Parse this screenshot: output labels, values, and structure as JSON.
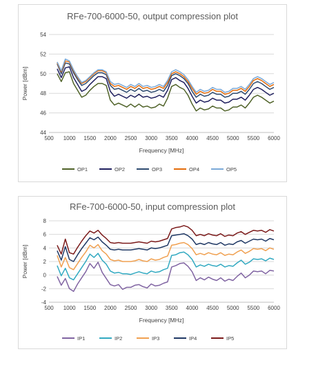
{
  "chart_data": [
    {
      "type": "line",
      "title": "RFe-700-6000-50, output compression plot",
      "xlabel": "Frequency [MHz]",
      "ylabel": "Power [dBm]",
      "xlim": [
        500,
        6000
      ],
      "ylim": [
        44,
        54
      ],
      "xticks": [
        "500",
        "1000",
        "1500",
        "2000",
        "2500",
        "3000",
        "3500",
        "4000",
        "4500",
        "5000",
        "5500",
        "6000"
      ],
      "yticks": [
        "44",
        "46",
        "48",
        "50",
        "52",
        "54"
      ],
      "grid": "horizontal",
      "legend": "bottom",
      "x": [
        700,
        800,
        900,
        1000,
        1100,
        1200,
        1300,
        1400,
        1500,
        1600,
        1700,
        1800,
        1900,
        2000,
        2100,
        2200,
        2300,
        2400,
        2500,
        2600,
        2700,
        2800,
        2900,
        3000,
        3100,
        3200,
        3300,
        3400,
        3500,
        3600,
        3700,
        3800,
        3900,
        4000,
        4100,
        4200,
        4300,
        4400,
        4500,
        4600,
        4700,
        4800,
        4900,
        5000,
        5100,
        5200,
        5300,
        5400,
        5500,
        5600,
        5700,
        5800,
        5900,
        6000
      ],
      "series": [
        {
          "name": "OP1",
          "color": "#4f6228",
          "values": [
            50.0,
            49.2,
            50.1,
            50.2,
            49.0,
            48.3,
            47.6,
            47.8,
            48.3,
            48.7,
            49.0,
            49.0,
            48.8,
            47.3,
            46.8,
            47.0,
            46.8,
            46.6,
            46.9,
            46.6,
            46.9,
            46.6,
            46.7,
            46.5,
            46.6,
            46.9,
            46.7,
            47.5,
            48.7,
            48.9,
            48.6,
            48.4,
            47.8,
            46.9,
            46.2,
            46.5,
            46.3,
            46.4,
            46.7,
            46.5,
            46.5,
            46.2,
            46.3,
            46.6,
            46.6,
            46.8,
            46.5,
            47.0,
            47.6,
            47.8,
            47.6,
            47.3,
            47.0,
            47.2
          ]
        },
        {
          "name": "OP2",
          "color": "#1f1f5e",
          "values": [
            50.5,
            49.6,
            50.6,
            50.7,
            49.6,
            48.9,
            48.2,
            48.4,
            48.9,
            49.3,
            49.7,
            49.7,
            49.5,
            48.2,
            47.7,
            47.9,
            47.7,
            47.5,
            47.8,
            47.6,
            47.9,
            47.6,
            47.7,
            47.5,
            47.6,
            47.8,
            47.6,
            48.3,
            49.4,
            49.6,
            49.3,
            49.1,
            48.5,
            47.7,
            47.0,
            47.3,
            47.1,
            47.2,
            47.5,
            47.3,
            47.3,
            47.0,
            47.1,
            47.4,
            47.4,
            47.6,
            47.3,
            47.8,
            48.4,
            48.6,
            48.4,
            48.1,
            47.8,
            48.0
          ]
        },
        {
          "name": "OP3",
          "color": "#2e4b70",
          "values": [
            51.0,
            50.0,
            51.1,
            51.0,
            50.1,
            49.4,
            48.8,
            49.0,
            49.4,
            49.8,
            50.1,
            50.1,
            49.9,
            48.8,
            48.4,
            48.5,
            48.3,
            48.1,
            48.4,
            48.2,
            48.5,
            48.2,
            48.3,
            48.1,
            48.2,
            48.4,
            48.2,
            48.8,
            49.8,
            50.0,
            49.8,
            49.5,
            49.0,
            48.2,
            47.6,
            47.9,
            47.7,
            47.8,
            48.1,
            47.9,
            47.9,
            47.6,
            47.7,
            48.0,
            48.0,
            48.2,
            47.9,
            48.4,
            49.0,
            49.2,
            49.0,
            48.7,
            48.4,
            48.6
          ]
        },
        {
          "name": "OP4",
          "color": "#e46c0a",
          "values": [
            51.1,
            50.2,
            51.3,
            51.2,
            50.3,
            49.6,
            49.0,
            49.2,
            49.6,
            50.0,
            50.3,
            50.3,
            50.1,
            49.0,
            48.7,
            48.8,
            48.6,
            48.4,
            48.7,
            48.5,
            48.8,
            48.5,
            48.6,
            48.4,
            48.5,
            48.7,
            48.5,
            49.1,
            50.0,
            50.2,
            50.0,
            49.7,
            49.2,
            48.5,
            47.9,
            48.2,
            48.0,
            48.1,
            48.4,
            48.2,
            48.2,
            47.9,
            48.0,
            48.3,
            48.3,
            48.5,
            48.2,
            48.7,
            49.3,
            49.5,
            49.3,
            49.0,
            48.7,
            48.9
          ]
        },
        {
          "name": "OP5",
          "color": "#7aa9d8",
          "values": [
            51.2,
            50.3,
            51.5,
            51.3,
            50.4,
            49.7,
            49.1,
            49.3,
            49.7,
            50.1,
            50.4,
            50.4,
            50.2,
            49.2,
            48.9,
            49.0,
            48.8,
            48.6,
            48.9,
            48.7,
            49.0,
            48.7,
            48.8,
            48.6,
            48.7,
            48.9,
            48.7,
            49.3,
            50.2,
            50.4,
            50.2,
            49.9,
            49.4,
            48.7,
            48.1,
            48.4,
            48.2,
            48.3,
            48.6,
            48.4,
            48.4,
            48.1,
            48.2,
            48.5,
            48.5,
            48.7,
            48.4,
            48.9,
            49.5,
            49.7,
            49.5,
            49.2,
            48.9,
            49.1
          ]
        }
      ]
    },
    {
      "type": "line",
      "title": "RFe-700-6000-50, input compression plot",
      "xlabel": "Frequency [MHz]",
      "ylabel": "Power [dBm]",
      "xlim": [
        500,
        6000
      ],
      "ylim": [
        -4,
        8
      ],
      "xticks": [
        "500",
        "1000",
        "1500",
        "2000",
        "2500",
        "3000",
        "3500",
        "4000",
        "4500",
        "5000",
        "5500",
        "6000"
      ],
      "yticks": [
        "-4",
        "-2",
        "0",
        "2",
        "4",
        "6",
        "8"
      ],
      "grid": "horizontal",
      "legend": "bottom",
      "x": [
        700,
        800,
        900,
        1000,
        1100,
        1200,
        1300,
        1400,
        1500,
        1600,
        1700,
        1800,
        1900,
        2000,
        2100,
        2200,
        2300,
        2400,
        2500,
        2600,
        2700,
        2800,
        2900,
        3000,
        3100,
        3200,
        3300,
        3400,
        3500,
        3600,
        3700,
        3800,
        3900,
        4000,
        4100,
        4200,
        4300,
        4400,
        4500,
        4600,
        4700,
        4800,
        4900,
        5000,
        5100,
        5200,
        5300,
        5400,
        5500,
        5600,
        5700,
        5800,
        5900,
        6000
      ],
      "series": [
        {
          "name": "IP1",
          "color": "#8064a2",
          "values": [
            -0.2,
            -1.5,
            -0.5,
            -2.0,
            -2.4,
            -1.3,
            -0.4,
            0.5,
            1.7,
            1.0,
            1.9,
            0.4,
            -0.5,
            -1.4,
            -1.6,
            -1.4,
            -2.1,
            -1.8,
            -1.8,
            -1.5,
            -1.4,
            -1.7,
            -1.9,
            -1.3,
            -1.6,
            -1.5,
            -1.2,
            -1.0,
            1.2,
            1.4,
            1.7,
            1.8,
            1.3,
            0.5,
            -0.8,
            -0.4,
            -0.7,
            -0.3,
            -0.6,
            -0.8,
            -0.4,
            -0.9,
            -0.6,
            -0.8,
            -0.2,
            0.3,
            -0.4,
            0.0,
            0.6,
            0.5,
            0.6,
            0.2,
            0.7,
            0.6
          ]
        },
        {
          "name": "IP2",
          "color": "#31a9c1",
          "values": [
            1.4,
            -0.1,
            1.0,
            -0.4,
            -0.7,
            0.2,
            1.1,
            2.0,
            3.1,
            2.6,
            3.2,
            2.2,
            1.6,
            0.6,
            0.3,
            0.4,
            0.2,
            0.2,
            0.1,
            0.3,
            0.5,
            0.3,
            0.2,
            0.6,
            0.4,
            0.5,
            0.8,
            1.0,
            2.9,
            3.0,
            3.3,
            3.4,
            3.0,
            2.3,
            1.2,
            1.5,
            1.3,
            1.6,
            1.4,
            1.3,
            1.6,
            1.2,
            1.4,
            1.3,
            1.8,
            2.2,
            1.6,
            1.9,
            2.4,
            2.3,
            2.4,
            2.1,
            2.5,
            2.3
          ]
        },
        {
          "name": "IP3",
          "color": "#f0a050",
          "values": [
            2.9,
            1.2,
            2.6,
            1.1,
            0.8,
            1.7,
            2.6,
            3.4,
            4.4,
            4.0,
            4.5,
            3.6,
            3.1,
            2.3,
            2.1,
            2.2,
            2.0,
            2.0,
            2.0,
            2.1,
            2.3,
            2.1,
            2.0,
            2.4,
            2.2,
            2.3,
            2.6,
            2.8,
            4.4,
            4.5,
            4.7,
            4.8,
            4.5,
            3.9,
            3.0,
            3.2,
            3.0,
            3.3,
            3.1,
            3.0,
            3.3,
            2.9,
            3.1,
            3.0,
            3.4,
            3.7,
            3.2,
            3.5,
            3.9,
            3.8,
            3.9,
            3.6,
            4.0,
            3.8
          ]
        },
        {
          "name": "IP4",
          "color": "#1f3864",
          "values": [
            3.6,
            2.2,
            4.2,
            2.3,
            2.0,
            3.0,
            3.9,
            4.7,
            5.5,
            5.2,
            5.6,
            4.9,
            4.4,
            3.8,
            3.7,
            3.8,
            3.7,
            3.7,
            3.7,
            3.8,
            3.9,
            3.8,
            3.7,
            4.0,
            3.9,
            4.0,
            4.2,
            4.4,
            5.8,
            5.9,
            6.0,
            6.1,
            5.8,
            5.3,
            4.5,
            4.7,
            4.5,
            4.8,
            4.6,
            4.5,
            4.8,
            4.4,
            4.6,
            4.5,
            4.9,
            5.1,
            4.7,
            5.0,
            5.3,
            5.2,
            5.3,
            5.0,
            5.4,
            5.2
          ]
        },
        {
          "name": "IP5",
          "color": "#7b1a1a",
          "values": [
            4.4,
            3.1,
            5.3,
            3.3,
            3.1,
            4.1,
            5.0,
            5.8,
            6.5,
            6.2,
            6.6,
            5.9,
            5.4,
            4.8,
            4.7,
            4.8,
            4.7,
            4.7,
            4.7,
            4.8,
            4.9,
            4.8,
            4.7,
            5.0,
            4.9,
            5.0,
            5.2,
            5.4,
            6.8,
            7.0,
            7.1,
            7.3,
            7.1,
            6.6,
            5.8,
            6.0,
            5.8,
            6.1,
            5.9,
            5.8,
            6.1,
            5.7,
            5.9,
            5.8,
            6.2,
            6.4,
            6.0,
            6.3,
            6.6,
            6.5,
            6.6,
            6.3,
            6.7,
            6.5
          ]
        }
      ]
    }
  ]
}
